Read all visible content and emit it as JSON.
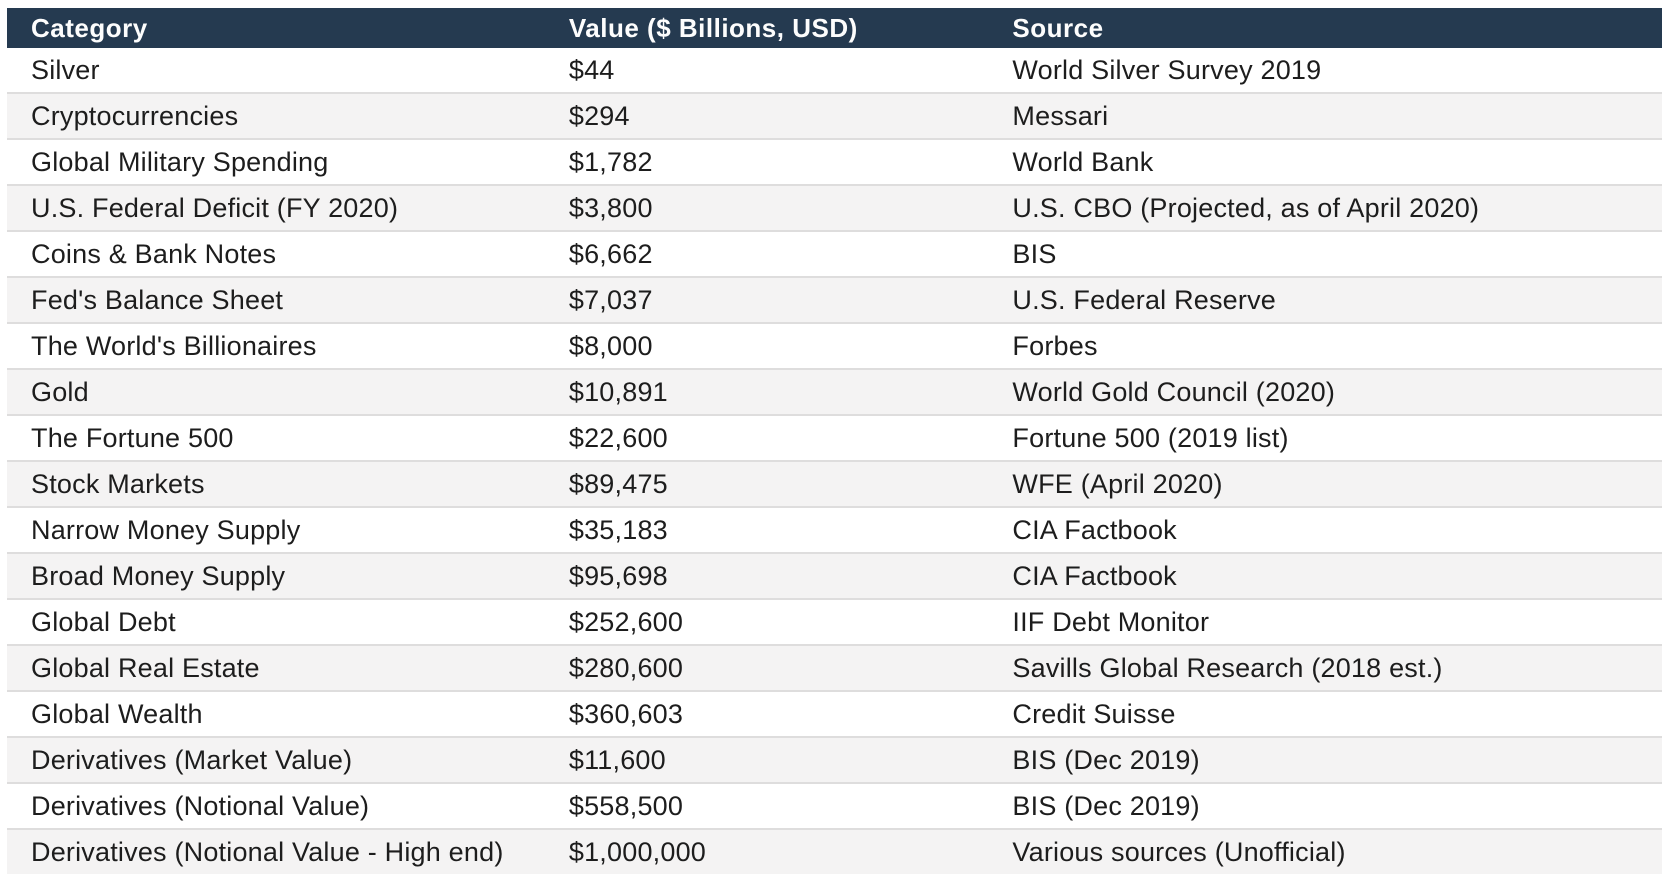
{
  "colors": {
    "background": "#ffffff",
    "header_bg": "#253a50",
    "header_text": "#fdfdfd",
    "row_alt_bg": "#f4f3f3",
    "row_border": "#dedddd",
    "body_text": "#1d1d1d"
  },
  "chart_data": {
    "type": "table",
    "title": "",
    "columns": [
      {
        "id": "category",
        "label": "Category"
      },
      {
        "id": "value",
        "label": "Value ($ Billions, USD)"
      },
      {
        "id": "source",
        "label": "Source"
      }
    ],
    "value_unit": "$ Billions, USD",
    "rows": [
      {
        "category": "Silver",
        "value": "$44",
        "value_billions": 44,
        "source": "World Silver Survey 2019"
      },
      {
        "category": "Cryptocurrencies",
        "value": "$294",
        "value_billions": 294,
        "source": "Messari"
      },
      {
        "category": "Global Military Spending",
        "value": "$1,782",
        "value_billions": 1782,
        "source": "World Bank"
      },
      {
        "category": "U.S. Federal Deficit (FY 2020)",
        "value": "$3,800",
        "value_billions": 3800,
        "source": "U.S. CBO (Projected, as of April 2020)"
      },
      {
        "category": "Coins & Bank Notes",
        "value": "$6,662",
        "value_billions": 6662,
        "source": "BIS"
      },
      {
        "category": "Fed's Balance Sheet",
        "value": "$7,037",
        "value_billions": 7037,
        "source": "U.S. Federal Reserve"
      },
      {
        "category": "The World's Billionaires",
        "value": "$8,000",
        "value_billions": 8000,
        "source": "Forbes"
      },
      {
        "category": "Gold",
        "value": "$10,891",
        "value_billions": 10891,
        "source": "World Gold Council (2020)"
      },
      {
        "category": "The Fortune 500",
        "value": "$22,600",
        "value_billions": 22600,
        "source": "Fortune 500 (2019 list)"
      },
      {
        "category": "Stock Markets",
        "value": "$89,475",
        "value_billions": 89475,
        "source": "WFE (April 2020)"
      },
      {
        "category": "Narrow Money Supply",
        "value": "$35,183",
        "value_billions": 35183,
        "source": "CIA Factbook"
      },
      {
        "category": "Broad Money Supply",
        "value": "$95,698",
        "value_billions": 95698,
        "source": "CIA Factbook"
      },
      {
        "category": "Global Debt",
        "value": "$252,600",
        "value_billions": 252600,
        "source": "IIF Debt Monitor"
      },
      {
        "category": "Global Real Estate",
        "value": "$280,600",
        "value_billions": 280600,
        "source": "Savills Global Research (2018 est.)"
      },
      {
        "category": "Global Wealth",
        "value": "$360,603",
        "value_billions": 360603,
        "source": "Credit Suisse"
      },
      {
        "category": "Derivatives (Market Value)",
        "value": "$11,600",
        "value_billions": 11600,
        "source": "BIS (Dec 2019)"
      },
      {
        "category": "Derivatives (Notional Value)",
        "value": "$558,500",
        "value_billions": 558500,
        "source": "BIS (Dec 2019)"
      },
      {
        "category": "Derivatives (Notional Value - High end)",
        "value": "$1,000,000",
        "value_billions": 1000000,
        "source": "Various sources (Unofficial)"
      }
    ]
  }
}
